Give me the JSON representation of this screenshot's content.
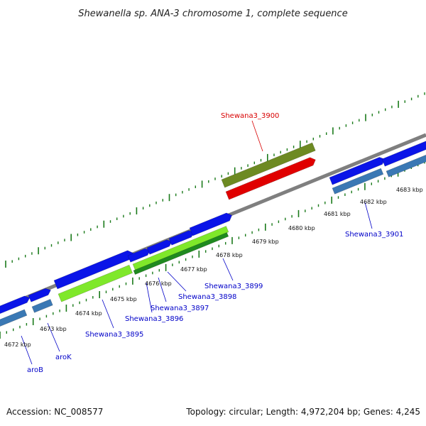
{
  "title": "Shewanella sp. ANA-3 chromosome 1, complete sequence",
  "footer": {
    "accession": "Accession: NC_008577",
    "topology": "Topology: circular; Length: 4,972,204 bp; Genes: 4,245"
  },
  "colors": {
    "backbone": "#7f7f7f",
    "tick": "#1a7a1a",
    "cds_forward": "#0a14e8",
    "cds_reverse": "#3a78b4",
    "rna_gene": "#e00000",
    "highlight_gene": "#6d8a22",
    "selected_span": "#7fe82a",
    "dark_green_band": "#1f8a1f",
    "label_blue": "#0000c8",
    "label_red": "#d80000"
  },
  "kbp_labels": [
    "4672 kbp",
    "4673 kbp",
    "4674 kbp",
    "4675 kbp",
    "4676 kbp",
    "4677 kbp",
    "4678 kbp",
    "4679 kbp",
    "4680 kbp",
    "4681 kbp",
    "4682 kbp",
    "4683 kbp"
  ],
  "gene_labels": {
    "aroB": "aroB",
    "aroK": "aroK",
    "g3895": "Shewana3_3895",
    "g3896": "Shewana3_3896",
    "g3897": "Shewana3_3897",
    "g3898": "Shewana3_3898",
    "g3899": "Shewana3_3899",
    "g3900": "Shewana3_3900",
    "g3901": "Shewana3_3901"
  }
}
